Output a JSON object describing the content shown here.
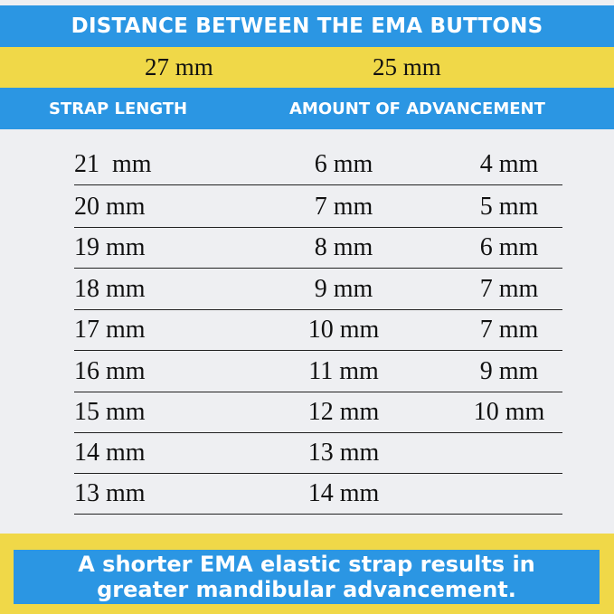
{
  "title": "DISTANCE BETWEEN THE EMA BUTTONS",
  "distances": [
    "27 mm",
    "25 mm"
  ],
  "headers": {
    "strap_length": "STRAP LENGTH",
    "advancement": "AMOUNT OF ADVANCEMENT"
  },
  "rows": [
    [
      "21  mm",
      "6 mm",
      "4 mm"
    ],
    [
      "20 mm",
      "7 mm",
      "5 mm"
    ],
    [
      "19 mm",
      "8 mm",
      "6 mm"
    ],
    [
      "18 mm",
      "9 mm",
      "7 mm"
    ],
    [
      "17 mm",
      "10 mm",
      "7 mm"
    ],
    [
      "16 mm",
      "11 mm",
      "9 mm"
    ],
    [
      "15 mm",
      "12 mm",
      "10 mm"
    ],
    [
      "14 mm",
      "13 mm",
      ""
    ],
    [
      "13 mm",
      "14 mm",
      ""
    ]
  ],
  "footer": [
    "A shorter EMA elastic strap results in",
    "greater mandibular advancement."
  ],
  "colors": {
    "blue": "#2b96e3",
    "yellow": "#f0d848",
    "background": "#eeeff2"
  }
}
